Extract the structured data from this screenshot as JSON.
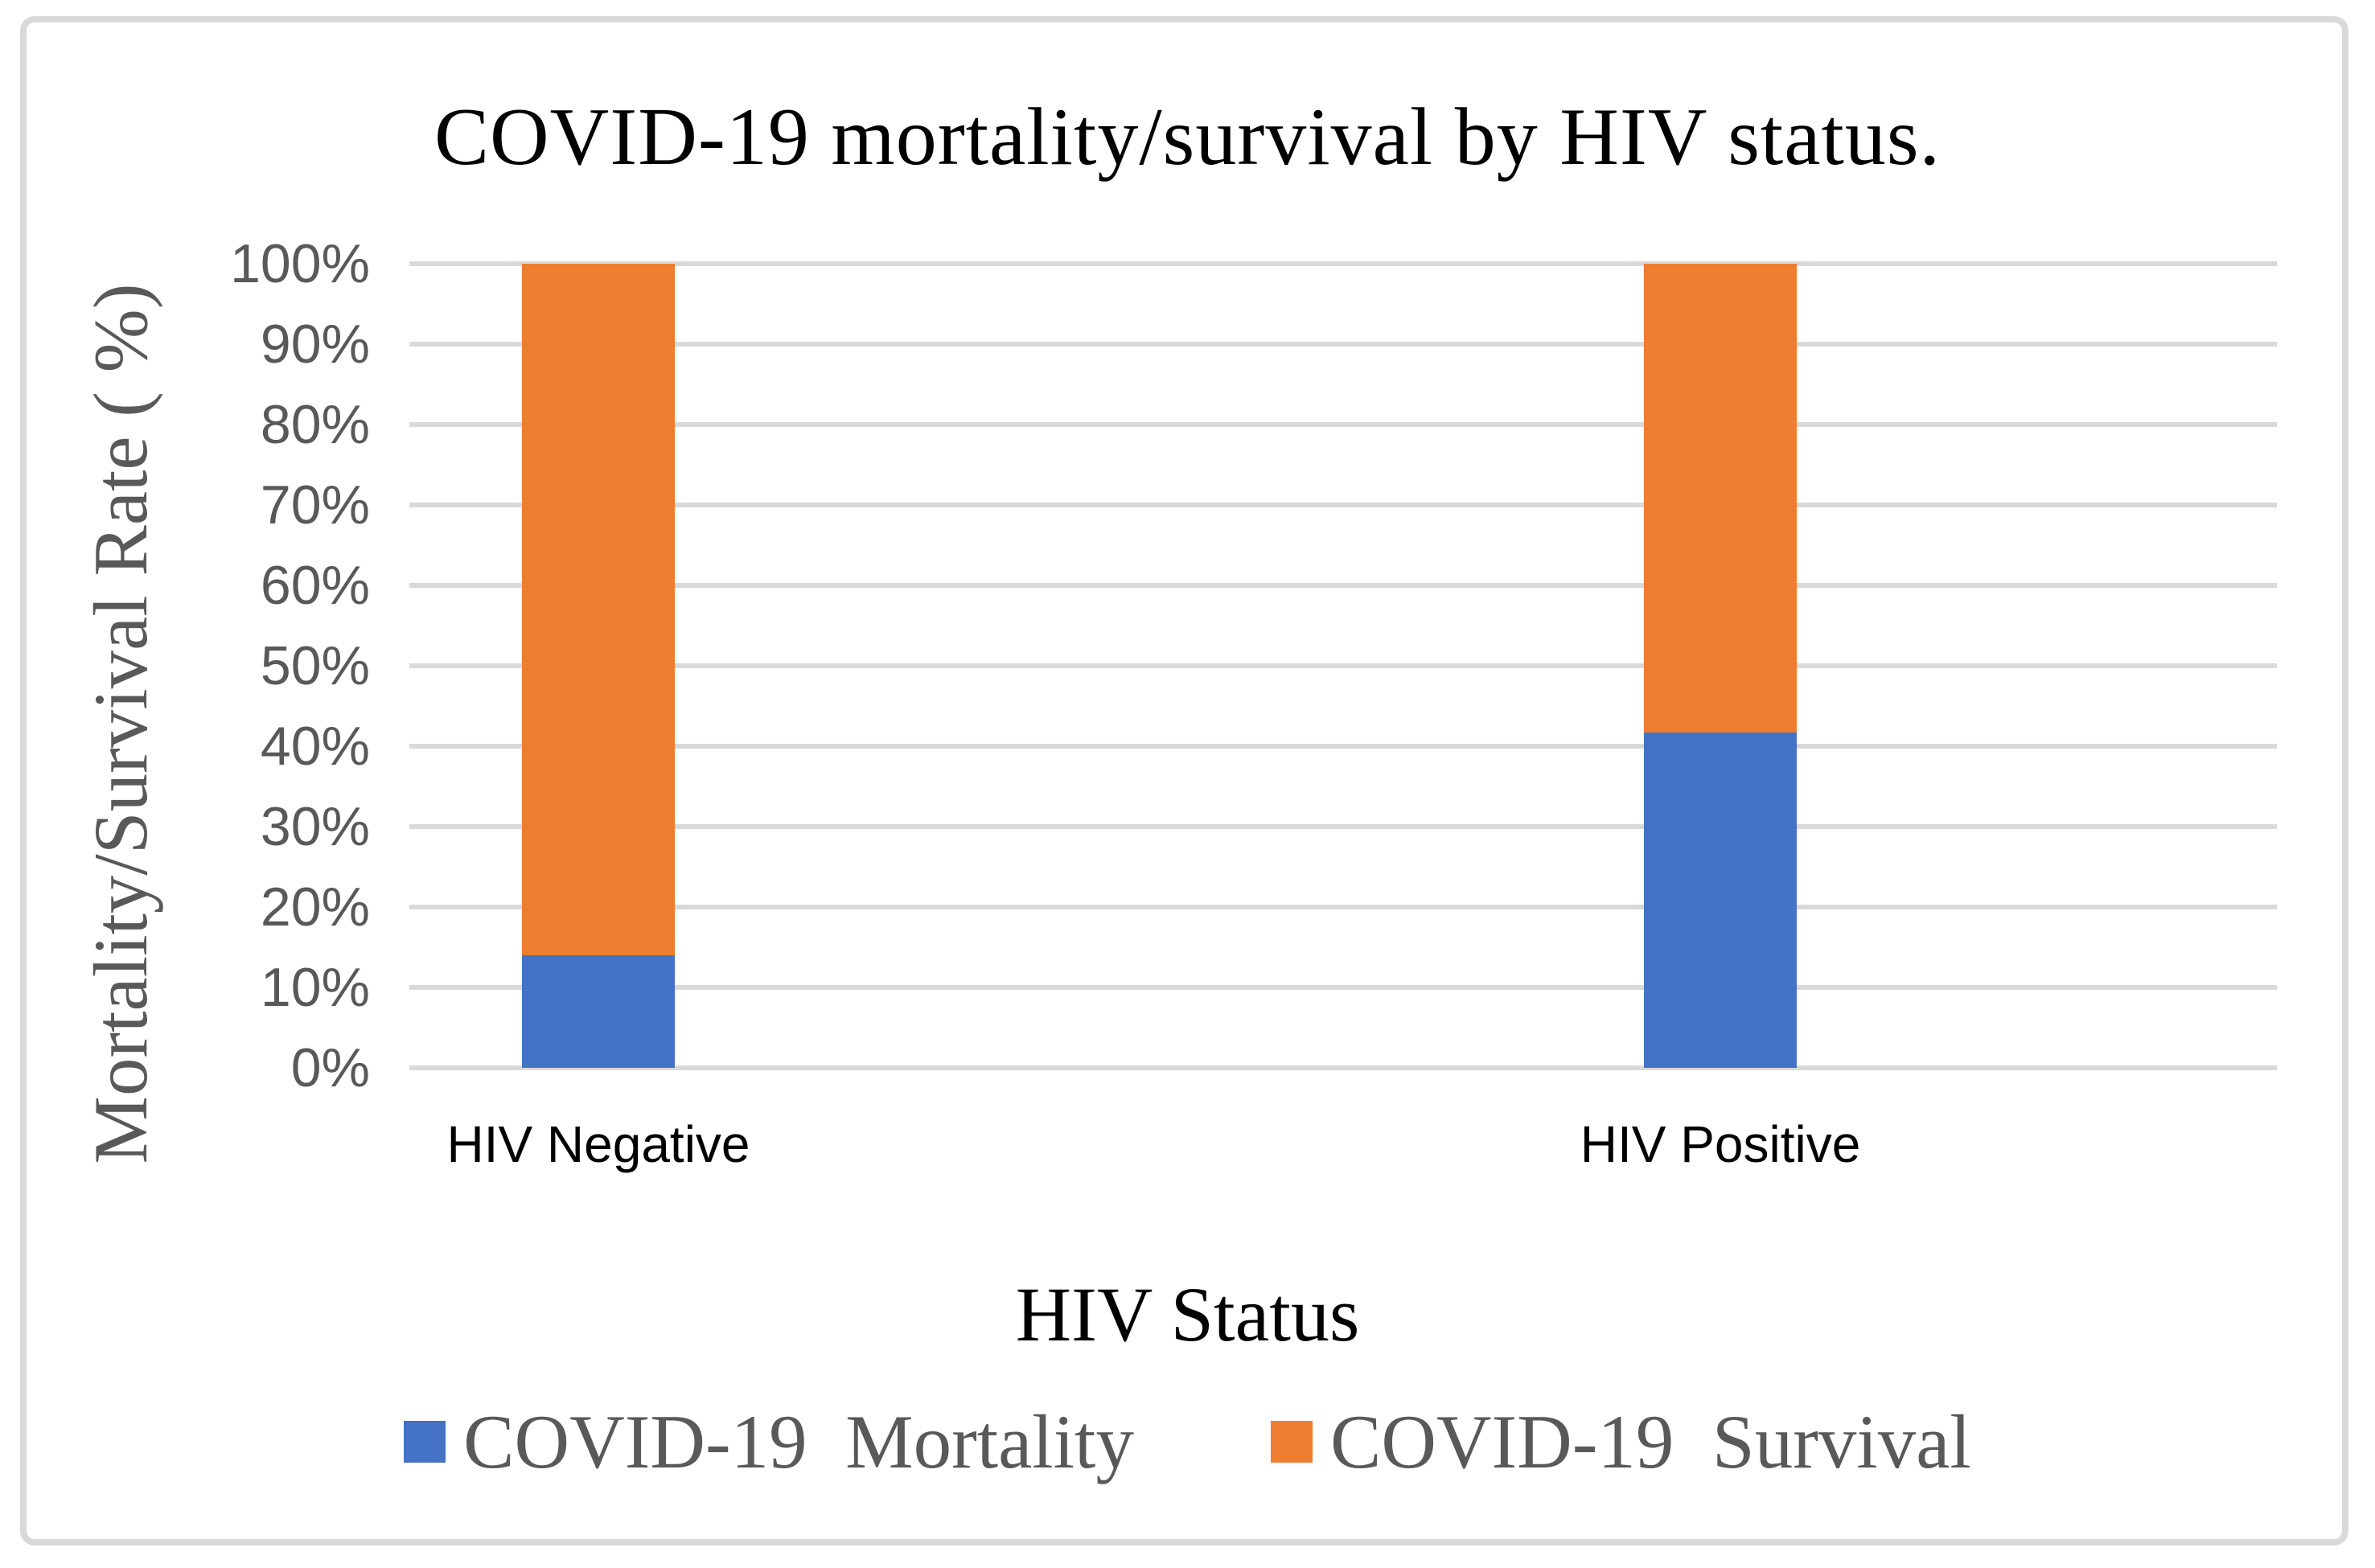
{
  "figure": {
    "title": "COVID-19 mortality/survival by HIV status.",
    "y_axis_title": "Mortality/Survival Rate ( %)",
    "x_axis_title": "HIV Status"
  },
  "chart_data": {
    "type": "bar",
    "stacked": true,
    "title": "COVID-19 mortality/survival by HIV status.",
    "xlabel": "HIV Status",
    "ylabel": "Mortality/Survival Rate ( %)",
    "categories": [
      "HIV Negative",
      "HIV Positive"
    ],
    "series": [
      {
        "name": "COVID-19  Mortality",
        "color": "#4472C4",
        "values": [
          14,
          41.7
        ]
      },
      {
        "name": "COVID-19  Survival",
        "color": "#ED7D31",
        "values": [
          86,
          58.3
        ]
      }
    ],
    "ylim": [
      0,
      100
    ],
    "ytick_step": 10,
    "yticks": [
      "0%",
      "10%",
      "20%",
      "30%",
      "40%",
      "50%",
      "60%",
      "70%",
      "80%",
      "90%",
      "100%"
    ],
    "grid": true,
    "legend_position": "bottom"
  },
  "colors": {
    "mortality_blue": "#4472C4",
    "survival_orange": "#ED7D31",
    "gridline": "#D9D9D9",
    "border": "#D9D9D9",
    "axis_text": "#595959",
    "label_text": "#000000"
  }
}
